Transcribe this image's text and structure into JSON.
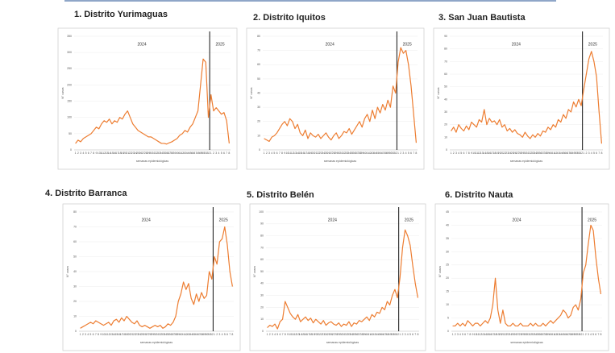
{
  "chart_data": [
    {
      "type": "line",
      "title": "1. Distrito Yurimaguas",
      "xlabel": "semanas epidemiológicas",
      "ylabel": "N° casos",
      "annotations": [
        "2024",
        "2025"
      ],
      "color": "#ed7d31",
      "categories": [
        1,
        2,
        3,
        4,
        5,
        6,
        7,
        8,
        9,
        10,
        11,
        12,
        13,
        14,
        15,
        16,
        17,
        18,
        19,
        20,
        21,
        22,
        23,
        24,
        25,
        26,
        27,
        28,
        29,
        30,
        31,
        32,
        33,
        34,
        35,
        36,
        37,
        38,
        39,
        40,
        41,
        42,
        43,
        44,
        45,
        46,
        47,
        48,
        49,
        50,
        51,
        52,
        1,
        2,
        3,
        4,
        5,
        6,
        7,
        8
      ],
      "values": [
        20,
        30,
        25,
        35,
        40,
        45,
        50,
        60,
        70,
        65,
        80,
        90,
        85,
        95,
        80,
        90,
        85,
        100,
        95,
        110,
        120,
        100,
        80,
        70,
        60,
        55,
        50,
        45,
        40,
        40,
        35,
        30,
        25,
        20,
        20,
        18,
        22,
        25,
        30,
        35,
        45,
        50,
        60,
        55,
        70,
        80,
        100,
        120,
        200,
        280,
        270,
        100,
        170,
        120,
        130,
        120,
        110,
        115,
        90,
        20
      ],
      "ylim": [
        0,
        350
      ],
      "yticks": [
        0,
        50,
        100,
        150,
        200,
        250,
        300,
        350
      ]
    },
    {
      "type": "line",
      "title": "2. Distrito Iquitos",
      "xlabel": "semanas epidemiológicas",
      "ylabel": "N° casos",
      "annotations": [
        "2024",
        "2025"
      ],
      "color": "#ed7d31",
      "categories": [
        1,
        2,
        3,
        4,
        5,
        6,
        7,
        8,
        9,
        10,
        11,
        12,
        13,
        14,
        15,
        16,
        17,
        18,
        19,
        20,
        21,
        22,
        23,
        24,
        25,
        26,
        27,
        28,
        29,
        30,
        31,
        32,
        33,
        34,
        35,
        36,
        37,
        38,
        39,
        40,
        41,
        42,
        43,
        44,
        45,
        46,
        47,
        48,
        49,
        50,
        51,
        52,
        1,
        2,
        3,
        4,
        5,
        6,
        7,
        8
      ],
      "values": [
        8,
        7,
        6,
        9,
        10,
        12,
        15,
        18,
        20,
        17,
        22,
        20,
        15,
        18,
        12,
        10,
        14,
        8,
        12,
        10,
        9,
        11,
        8,
        10,
        12,
        9,
        7,
        10,
        12,
        8,
        10,
        13,
        12,
        15,
        11,
        14,
        17,
        20,
        16,
        22,
        25,
        20,
        28,
        22,
        30,
        26,
        32,
        28,
        35,
        30,
        45,
        40,
        62,
        72,
        68,
        70,
        60,
        45,
        25,
        5
      ],
      "ylim": [
        0,
        80
      ],
      "yticks": [
        0,
        10,
        20,
        30,
        40,
        50,
        60,
        70,
        80
      ]
    },
    {
      "type": "line",
      "title": "3. San Juan Bautista",
      "xlabel": "semanas epidemiológicas",
      "ylabel": "N° casos",
      "annotations": [
        "2024",
        "2025"
      ],
      "color": "#ed7d31",
      "categories": [
        1,
        2,
        3,
        4,
        5,
        6,
        7,
        8,
        9,
        10,
        11,
        12,
        13,
        14,
        15,
        16,
        17,
        18,
        19,
        20,
        21,
        22,
        23,
        24,
        25,
        26,
        27,
        28,
        29,
        30,
        31,
        32,
        33,
        34,
        35,
        36,
        37,
        38,
        39,
        40,
        41,
        42,
        43,
        44,
        45,
        46,
        47,
        48,
        49,
        50,
        51,
        52,
        1,
        2,
        3,
        4,
        5,
        6,
        7,
        8
      ],
      "values": [
        15,
        18,
        14,
        20,
        17,
        15,
        19,
        16,
        22,
        20,
        18,
        24,
        22,
        32,
        20,
        25,
        22,
        23,
        20,
        24,
        18,
        20,
        15,
        17,
        14,
        16,
        13,
        12,
        10,
        14,
        11,
        9,
        12,
        10,
        13,
        11,
        15,
        14,
        18,
        16,
        20,
        18,
        24,
        22,
        28,
        25,
        32,
        30,
        38,
        34,
        40,
        35,
        48,
        60,
        72,
        78,
        70,
        58,
        30,
        5
      ],
      "ylim": [
        0,
        90
      ],
      "yticks": [
        0,
        10,
        20,
        30,
        40,
        50,
        60,
        70,
        80,
        90
      ]
    },
    {
      "type": "line",
      "title": "4. Distrito Barranca",
      "xlabel": "semanas epidemiológicas",
      "ylabel": "N° casos",
      "annotations": [
        "2024",
        "2025"
      ],
      "color": "#ed7d31",
      "categories": [
        1,
        2,
        3,
        4,
        5,
        6,
        7,
        8,
        9,
        10,
        11,
        12,
        13,
        14,
        15,
        16,
        17,
        18,
        19,
        20,
        21,
        22,
        23,
        24,
        25,
        26,
        27,
        28,
        29,
        30,
        31,
        32,
        33,
        34,
        35,
        36,
        37,
        38,
        39,
        40,
        41,
        42,
        43,
        44,
        45,
        46,
        47,
        48,
        49,
        50,
        51,
        52,
        1,
        2,
        3,
        4,
        5,
        6,
        7,
        8
      ],
      "values": [
        2,
        3,
        4,
        5,
        6,
        5,
        7,
        6,
        5,
        4,
        5,
        6,
        4,
        7,
        8,
        6,
        9,
        7,
        10,
        8,
        6,
        5,
        7,
        4,
        3,
        4,
        3,
        2,
        3,
        4,
        3,
        4,
        2,
        3,
        5,
        4,
        6,
        10,
        20,
        25,
        33,
        28,
        32,
        22,
        18,
        25,
        20,
        26,
        22,
        24,
        40,
        35,
        50,
        45,
        60,
        62,
        70,
        58,
        40,
        30
      ],
      "ylim": [
        0,
        80
      ],
      "yticks": [
        0,
        10,
        20,
        30,
        40,
        50,
        60,
        70,
        80
      ]
    },
    {
      "type": "line",
      "title": "5. Distrito Belén",
      "xlabel": "semanas epidemiológicas",
      "ylabel": "N° casos",
      "annotations": [
        "2024",
        "2025"
      ],
      "color": "#ed7d31",
      "categories": [
        1,
        2,
        3,
        4,
        5,
        6,
        7,
        8,
        9,
        10,
        11,
        12,
        13,
        14,
        15,
        16,
        17,
        18,
        19,
        20,
        21,
        22,
        23,
        24,
        25,
        26,
        27,
        28,
        29,
        30,
        31,
        32,
        33,
        34,
        35,
        36,
        37,
        38,
        39,
        40,
        41,
        42,
        43,
        44,
        45,
        46,
        47,
        48,
        49,
        50,
        51,
        52,
        1,
        2,
        3,
        4,
        5,
        6,
        7,
        8
      ],
      "values": [
        3,
        5,
        4,
        6,
        2,
        8,
        10,
        25,
        20,
        15,
        12,
        10,
        14,
        8,
        10,
        12,
        9,
        11,
        7,
        10,
        8,
        6,
        9,
        5,
        7,
        8,
        6,
        5,
        7,
        4,
        6,
        5,
        8,
        4,
        7,
        6,
        9,
        8,
        10,
        12,
        9,
        14,
        12,
        16,
        15,
        20,
        18,
        25,
        22,
        30,
        35,
        28,
        45,
        70,
        85,
        80,
        72,
        55,
        40,
        28
      ],
      "ylim": [
        0,
        100
      ],
      "yticks": [
        0,
        10,
        20,
        30,
        40,
        50,
        60,
        70,
        80,
        90,
        100
      ]
    },
    {
      "type": "line",
      "title": "6. Distrito Nauta",
      "xlabel": "semanas epidemiológicas",
      "ylabel": "N° casos",
      "annotations": [
        "2024",
        "2025"
      ],
      "color": "#ed7d31",
      "categories": [
        1,
        2,
        3,
        4,
        5,
        6,
        7,
        8,
        9,
        10,
        11,
        12,
        13,
        14,
        15,
        16,
        17,
        18,
        19,
        20,
        21,
        22,
        23,
        24,
        25,
        26,
        27,
        28,
        29,
        30,
        31,
        32,
        33,
        34,
        35,
        36,
        37,
        38,
        39,
        40,
        41,
        42,
        43,
        44,
        45,
        46,
        47,
        48,
        49,
        50,
        51,
        52,
        1,
        2,
        3,
        4,
        5,
        6,
        7,
        8
      ],
      "values": [
        2,
        2,
        3,
        2,
        3,
        2,
        4,
        3,
        2,
        3,
        3,
        2,
        3,
        4,
        3,
        5,
        10,
        20,
        8,
        3,
        8,
        3,
        2,
        2,
        3,
        2,
        2,
        3,
        2,
        2,
        2,
        3,
        2,
        3,
        2,
        2,
        3,
        2,
        3,
        4,
        3,
        4,
        5,
        6,
        8,
        7,
        5,
        6,
        9,
        10,
        8,
        12,
        22,
        25,
        33,
        40,
        38,
        28,
        20,
        14
      ],
      "ylim": [
        0,
        45
      ],
      "yticks": [
        0,
        5,
        10,
        15,
        20,
        25,
        30,
        35,
        40,
        45
      ]
    }
  ]
}
